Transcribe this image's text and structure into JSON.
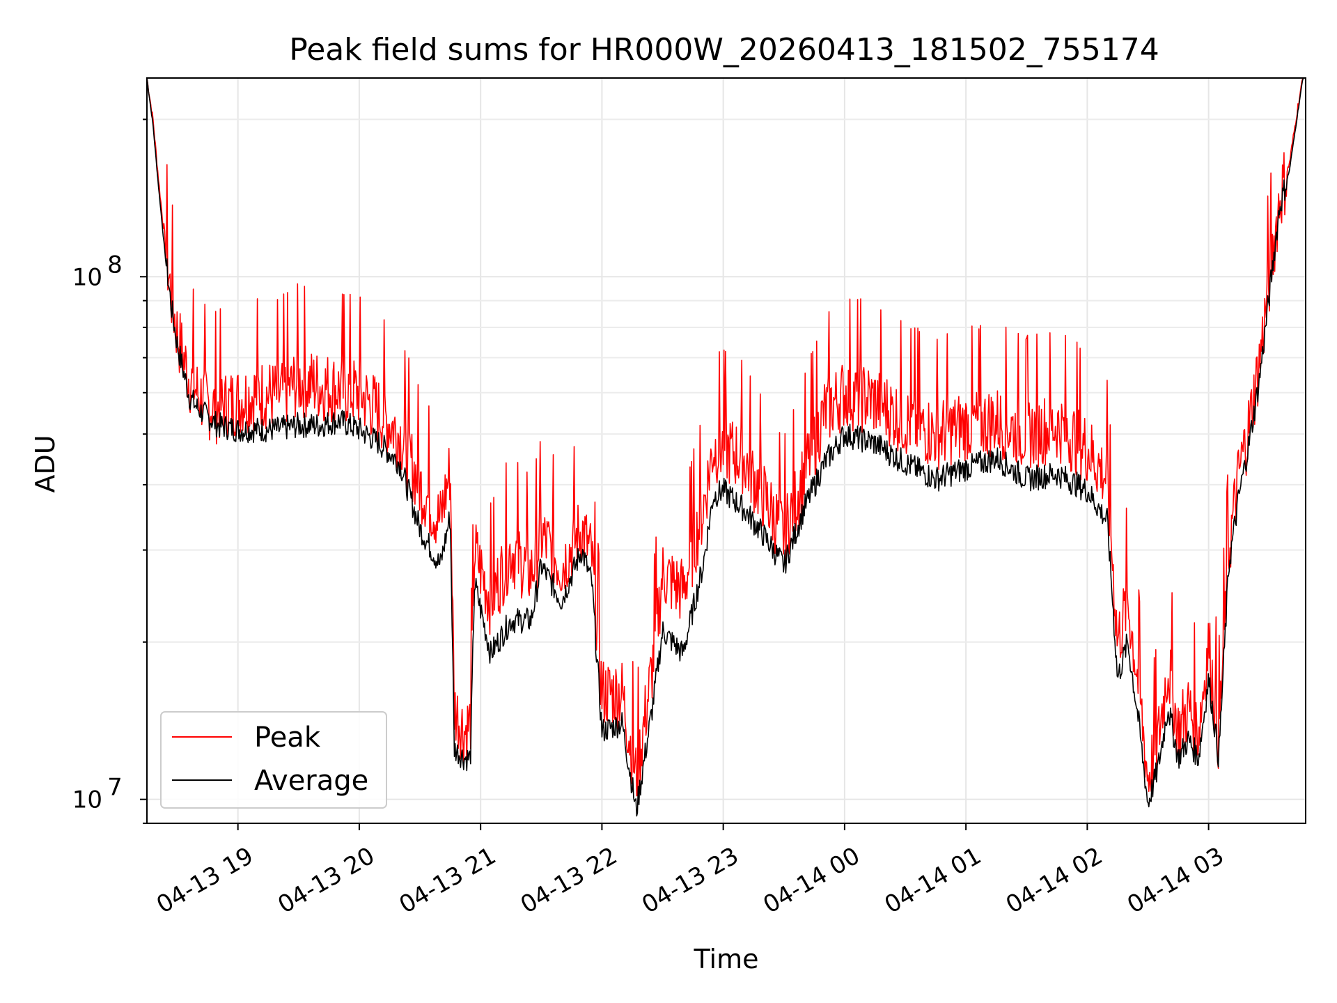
{
  "chart_data": {
    "type": "line",
    "title": "Peak field sums for HR000W_20260413_181502_755174",
    "xlabel": "Time",
    "ylabel": "ADU",
    "y_scale": "log",
    "ylim": [
      9000000,
      240000000
    ],
    "xlim": [
      "2026-04-13 18:15",
      "2026-04-14 03:48"
    ],
    "grid": true,
    "legend_position": "lower-left",
    "x_tick_labels": [
      "04-13 19",
      "04-13 20",
      "04-13 21",
      "04-13 22",
      "04-13 23",
      "04-14 00",
      "04-14 01",
      "04-14 02",
      "04-14 03"
    ],
    "x_ticks": [
      "2026-04-13 19:00",
      "2026-04-13 20:00",
      "2026-04-13 21:00",
      "2026-04-13 22:00",
      "2026-04-13 23:00",
      "2026-04-14 00:00",
      "2026-04-14 01:00",
      "2026-04-14 02:00",
      "2026-04-14 03:00"
    ],
    "y_tick_labels": [
      {
        "value": 10000000,
        "base": "10",
        "exp": "7"
      },
      {
        "value": 100000000,
        "base": "10",
        "exp": "8"
      }
    ],
    "x": [
      "2026-04-13 18:15",
      "2026-04-13 18:18",
      "2026-04-13 18:21",
      "2026-04-13 18:24",
      "2026-04-13 18:27",
      "2026-04-13 18:30",
      "2026-04-13 18:33",
      "2026-04-13 18:36",
      "2026-04-13 18:40",
      "2026-04-13 18:45",
      "2026-04-13 18:50",
      "2026-04-13 19:00",
      "2026-04-13 19:10",
      "2026-04-13 19:20",
      "2026-04-13 19:30",
      "2026-04-13 19:40",
      "2026-04-13 19:50",
      "2026-04-13 20:00",
      "2026-04-13 20:10",
      "2026-04-13 20:20",
      "2026-04-13 20:30",
      "2026-04-13 20:40",
      "2026-04-13 20:45",
      "2026-04-13 20:47",
      "2026-04-13 20:52",
      "2026-04-13 20:55",
      "2026-04-13 20:57",
      "2026-04-13 21:05",
      "2026-04-13 21:15",
      "2026-04-13 21:25",
      "2026-04-13 21:30",
      "2026-04-13 21:40",
      "2026-04-13 21:50",
      "2026-04-13 21:55",
      "2026-04-13 22:00",
      "2026-04-13 22:10",
      "2026-04-13 22:17",
      "2026-04-13 22:25",
      "2026-04-13 22:30",
      "2026-04-13 22:40",
      "2026-04-13 22:50",
      "2026-04-13 22:55",
      "2026-04-13 23:00",
      "2026-04-13 23:10",
      "2026-04-13 23:20",
      "2026-04-13 23:30",
      "2026-04-13 23:40",
      "2026-04-13 23:50",
      "2026-04-14 00:00",
      "2026-04-14 00:15",
      "2026-04-14 00:30",
      "2026-04-14 00:45",
      "2026-04-14 01:00",
      "2026-04-14 01:15",
      "2026-04-14 01:30",
      "2026-04-14 01:45",
      "2026-04-14 02:00",
      "2026-04-14 02:10",
      "2026-04-14 02:15",
      "2026-04-14 02:20",
      "2026-04-14 02:25",
      "2026-04-14 02:30",
      "2026-04-14 02:35",
      "2026-04-14 02:40",
      "2026-04-14 02:45",
      "2026-04-14 02:50",
      "2026-04-14 02:55",
      "2026-04-14 03:00",
      "2026-04-14 03:05",
      "2026-04-14 03:10",
      "2026-04-14 03:15",
      "2026-04-14 03:20",
      "2026-04-14 03:25",
      "2026-04-14 03:30",
      "2026-04-14 03:35",
      "2026-04-14 03:40",
      "2026-04-14 03:44",
      "2026-04-14 03:47"
    ],
    "series": [
      {
        "name": "Peak",
        "color": "#ff0000",
        "values": [
          240000000,
          200000000,
          150000000,
          115000000,
          92000000,
          78000000,
          70000000,
          64000000,
          60000000,
          57000000,
          56000000,
          58000000,
          60000000,
          59000000,
          63000000,
          62000000,
          61000000,
          60000000,
          55000000,
          50000000,
          40000000,
          34000000,
          43000000,
          15000000,
          13500000,
          14000000,
          30000000,
          24000000,
          30000000,
          27000000,
          32000000,
          28000000,
          33000000,
          29000000,
          16000000,
          16000000,
          11000000,
          18000000,
          27000000,
          25000000,
          36000000,
          47000000,
          47000000,
          45000000,
          38000000,
          32000000,
          42000000,
          55000000,
          60000000,
          58000000,
          53000000,
          50000000,
          52000000,
          53000000,
          50000000,
          52000000,
          47000000,
          41000000,
          20000000,
          24000000,
          17000000,
          11000000,
          13000000,
          18000000,
          13500000,
          15000000,
          13500000,
          20000000,
          13000000,
          30000000,
          42000000,
          52000000,
          68000000,
          98000000,
          140000000,
          165000000,
          210000000,
          245000000
        ]
      },
      {
        "name": "Average",
        "color": "#000000",
        "values": [
          240000000,
          195000000,
          145000000,
          110000000,
          88000000,
          74000000,
          66000000,
          59000000,
          56000000,
          54000000,
          52000000,
          51000000,
          51000000,
          51000000,
          52000000,
          52000000,
          53000000,
          51000000,
          48000000,
          44000000,
          33000000,
          28000000,
          35000000,
          12500000,
          12000000,
          12000000,
          26000000,
          19000000,
          22000000,
          22000000,
          28000000,
          24000000,
          30000000,
          26000000,
          13500000,
          14000000,
          9500000,
          15000000,
          21000000,
          19000000,
          28000000,
          38000000,
          39000000,
          36000000,
          32000000,
          28000000,
          36000000,
          44000000,
          50000000,
          48000000,
          44000000,
          41000000,
          43000000,
          45000000,
          41000000,
          42000000,
          39000000,
          34000000,
          17000000,
          20000000,
          14500000,
          9800000,
          11500000,
          15000000,
          12000000,
          13000000,
          12000000,
          17000000,
          12000000,
          28000000,
          38000000,
          48000000,
          63000000,
          92000000,
          135000000,
          160000000,
          205000000,
          245000000
        ]
      }
    ]
  }
}
